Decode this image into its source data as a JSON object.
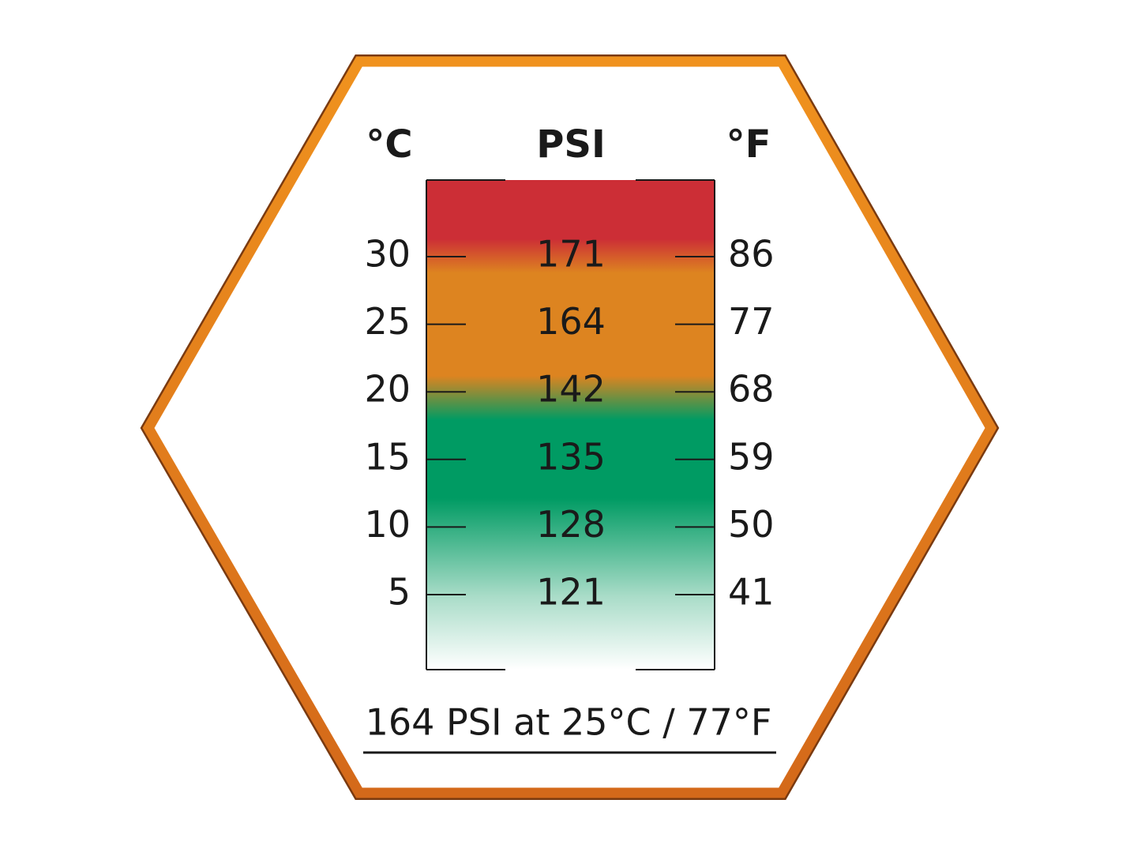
{
  "header": {
    "celsius": "°C",
    "psi": "PSI",
    "fahrenheit": "°F"
  },
  "rows": [
    {
      "celsius": "30",
      "psi": "171",
      "fahrenheit": "86"
    },
    {
      "celsius": "25",
      "psi": "164",
      "fahrenheit": "77"
    },
    {
      "celsius": "20",
      "psi": "142",
      "fahrenheit": "68"
    },
    {
      "celsius": "15",
      "psi": "135",
      "fahrenheit": "59"
    },
    {
      "celsius": "10",
      "psi": "128",
      "fahrenheit": "50"
    },
    {
      "celsius": "5",
      "psi": "121",
      "fahrenheit": "41"
    }
  ],
  "footer": "164 PSI at 25°C / 77°F"
}
